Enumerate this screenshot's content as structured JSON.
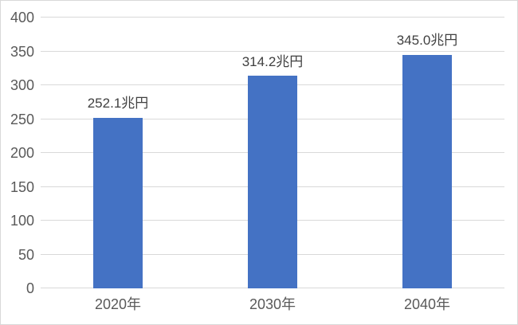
{
  "chart_data": {
    "type": "bar",
    "categories": [
      "2020年",
      "2030年",
      "2040年"
    ],
    "values": [
      252.1,
      314.2,
      345.0
    ],
    "data_labels": [
      "252.1兆円",
      "314.2兆円",
      "345.0兆円"
    ],
    "title": "",
    "xlabel": "",
    "ylabel": "",
    "ylim": [
      0,
      400
    ],
    "ytick_step": 50,
    "yticks": [
      0,
      50,
      100,
      150,
      200,
      250,
      300,
      350,
      400
    ],
    "grid": true,
    "legend": false,
    "colors": {
      "bar": "#4472c4",
      "gridline": "#d9d9d9",
      "axis_label": "#595959",
      "data_label": "#404040",
      "background": "#ffffff",
      "chart_border": "#d9d9d9"
    }
  }
}
